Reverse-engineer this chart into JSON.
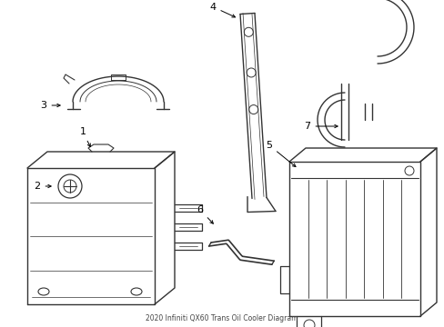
{
  "title": "2020 Infiniti QX60 Trans Oil Cooler Diagram",
  "bg_color": "#ffffff",
  "line_color": "#333333",
  "label_color": "#000000",
  "fig_width": 4.89,
  "fig_height": 3.6,
  "dpi": 100
}
